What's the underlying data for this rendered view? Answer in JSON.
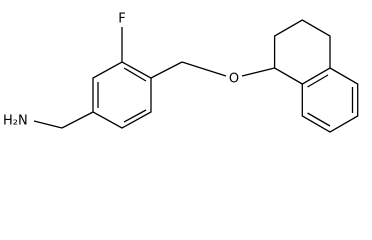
{
  "atoms": [
    {
      "label": "F"
    },
    {
      "label": "O"
    },
    {
      "label": "H₂N"
    }
  ]
}
